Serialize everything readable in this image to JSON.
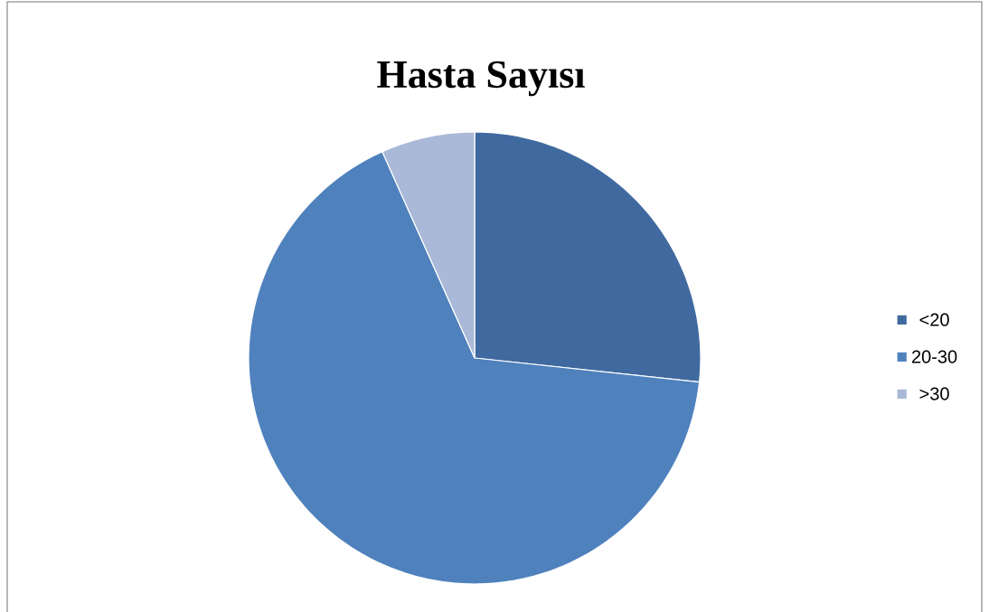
{
  "chart_data": {
    "type": "pie",
    "title": "Hasta Sayısı",
    "categories": [
      "<20",
      "20-30",
      ">30"
    ],
    "values": [
      26.7,
      66.6,
      6.7
    ],
    "colors": [
      "#406a9f",
      "#4f81bd",
      "#aab9d8"
    ],
    "legend": "right"
  }
}
